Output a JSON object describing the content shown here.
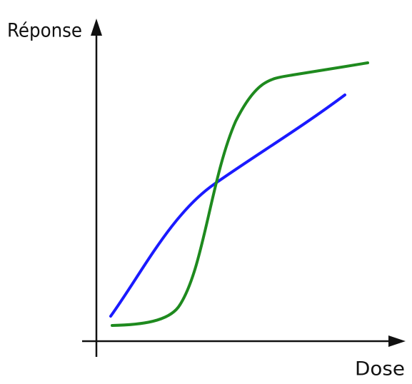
{
  "axes": {
    "y_label": "Réponse",
    "x_label": "Dose"
  }
}
